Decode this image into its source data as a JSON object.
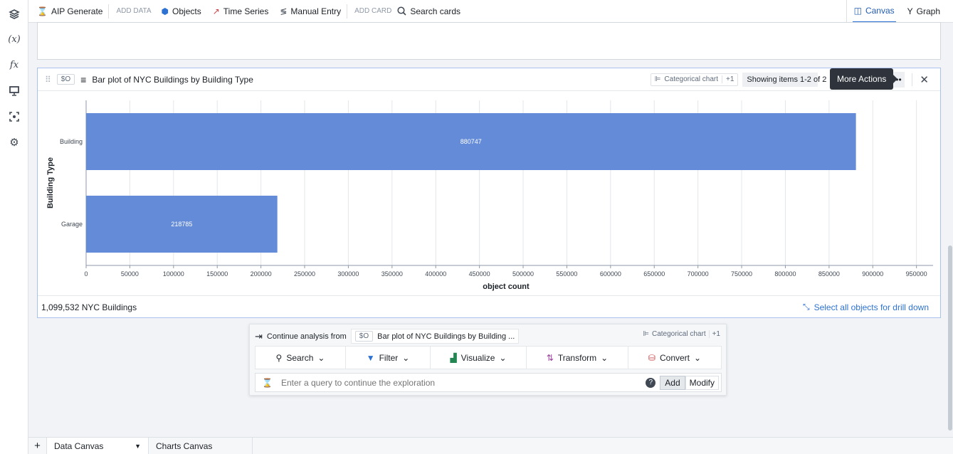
{
  "sidebar": {
    "icons": [
      "layers-icon",
      "variable-icon",
      "function-icon",
      "presentation-icon",
      "focus-icon",
      "gear-icon"
    ],
    "variable_label": "(x)",
    "function_label": "fx"
  },
  "toolbar": {
    "aip_generate": "AIP Generate",
    "add_data": "ADD DATA",
    "objects": "Objects",
    "time_series": "Time Series",
    "manual_entry": "Manual Entry",
    "add_card": "ADD CARD",
    "search_cards": "Search cards",
    "canvas": "Canvas",
    "graph": "Graph"
  },
  "card": {
    "var": "$O",
    "title": "Bar plot of NYC Buildings by Building Type",
    "chart_type": "Categorical chart",
    "plus": "+1",
    "showing": "Showing items 1-2 of 2",
    "tooltip": "More Actions",
    "footer_count": "1,099,532 NYC Buildings",
    "drill_down": "Select all objects for drill down"
  },
  "chart_data": {
    "type": "bar",
    "orientation": "horizontal",
    "categories": [
      "Building",
      "Garage"
    ],
    "values": [
      880747,
      218785
    ],
    "xlabel": "object count",
    "ylabel": "Building Type",
    "xlim": [
      0,
      969000
    ],
    "xticks": [
      0,
      50000,
      100000,
      150000,
      200000,
      250000,
      300000,
      350000,
      400000,
      450000,
      500000,
      550000,
      600000,
      650000,
      700000,
      750000,
      800000,
      850000,
      900000,
      950000
    ],
    "grid": true,
    "color": "#648bd8"
  },
  "continue": {
    "label": "Continue analysis from",
    "var": "$O",
    "source": "Bar plot of NYC Buildings by Building ...",
    "chart_type": "Categorical chart",
    "plus": "+1",
    "ops": [
      "Search",
      "Filter",
      "Visualize",
      "Transform",
      "Convert"
    ],
    "placeholder": "Enter a query to continue the exploration",
    "add": "Add",
    "modify": "Modify"
  },
  "tabs": {
    "items": [
      "Data Canvas",
      "Charts Canvas"
    ],
    "add": "+"
  }
}
